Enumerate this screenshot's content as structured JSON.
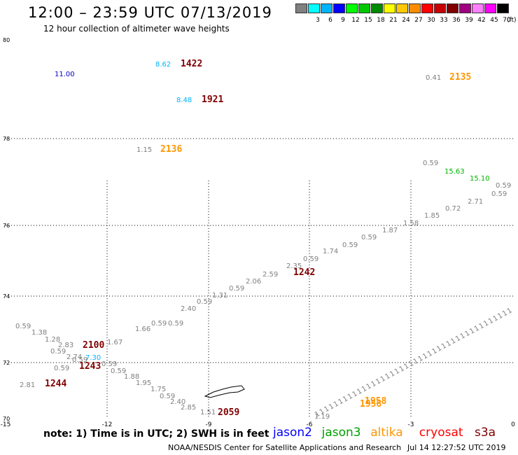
{
  "header": {
    "title": "12:00 – 23:59 UTC 07/13/2019",
    "subtitle": "12 hour collection of altimeter wave heights"
  },
  "legend": {
    "swatches": [
      {
        "color": "#808080",
        "label": ""
      },
      {
        "color": "#00ffff",
        "label": "3"
      },
      {
        "color": "#00b4ff",
        "label": "6"
      },
      {
        "color": "#0000ff",
        "label": "9"
      },
      {
        "color": "#00ff00",
        "label": "12"
      },
      {
        "color": "#00c800",
        "label": "15"
      },
      {
        "color": "#008c00",
        "label": "18"
      },
      {
        "color": "#ffff00",
        "label": "21"
      },
      {
        "color": "#ffc800",
        "label": "24"
      },
      {
        "color": "#ff8c00",
        "label": "27"
      },
      {
        "color": "#ff0000",
        "label": "30"
      },
      {
        "color": "#c80000",
        "label": "33"
      },
      {
        "color": "#800000",
        "label": "36"
      },
      {
        "color": "#a00080",
        "label": "39"
      },
      {
        "color": "#ff80ff",
        "label": "42"
      },
      {
        "color": "#ff00ff",
        "label": "45"
      },
      {
        "color": "#000000",
        "label": "70"
      }
    ],
    "unit": "(ft)"
  },
  "map": {
    "lat_labels": [
      "80",
      "78",
      "76",
      "74",
      "72",
      "70"
    ],
    "lon_labels": [
      "-15",
      "-12",
      "-9",
      "-6",
      "-3",
      "0"
    ],
    "colors": {
      "gray": "#808080",
      "cyan": "#00b4ff",
      "blue": "#0000c8",
      "green": "#00b400",
      "orange": "#ff9600",
      "darkred": "#800000"
    },
    "labels": [
      {
        "t": "11.00",
        "c": "blue"
      },
      {
        "t": "8.62",
        "c": "cyan"
      },
      {
        "t": "1422",
        "c": "darkred",
        "big": true
      },
      {
        "t": "8.48",
        "c": "cyan"
      },
      {
        "t": "1921",
        "c": "darkred",
        "big": true
      },
      {
        "t": "0.41",
        "c": "gray"
      },
      {
        "t": "2135",
        "c": "orange",
        "big": true
      },
      {
        "t": "1.15",
        "c": "gray"
      },
      {
        "t": "2136",
        "c": "orange",
        "big": true
      },
      {
        "t": "0.59",
        "c": "gray"
      },
      {
        "t": "15.63",
        "c": "green"
      },
      {
        "t": "15.10",
        "c": "green"
      },
      {
        "t": "0.59",
        "c": "gray"
      },
      {
        "t": "0.59",
        "c": "gray"
      },
      {
        "t": "2.71",
        "c": "gray"
      },
      {
        "t": "0.72",
        "c": "gray"
      },
      {
        "t": "1.85",
        "c": "gray"
      },
      {
        "t": "1.58",
        "c": "gray"
      },
      {
        "t": "1.87",
        "c": "gray"
      },
      {
        "t": "0.59",
        "c": "gray"
      },
      {
        "t": "0.59",
        "c": "gray"
      },
      {
        "t": "1.74",
        "c": "gray"
      },
      {
        "t": "0.59",
        "c": "gray"
      },
      {
        "t": "2.35",
        "c": "gray"
      },
      {
        "t": "1242",
        "c": "darkred",
        "big": true
      },
      {
        "t": "2.06",
        "c": "gray"
      },
      {
        "t": "2.59",
        "c": "gray"
      },
      {
        "t": "0.59",
        "c": "gray"
      },
      {
        "t": "1.31",
        "c": "gray"
      },
      {
        "t": "0.59",
        "c": "gray"
      },
      {
        "t": "2.40",
        "c": "gray"
      },
      {
        "t": "0.59",
        "c": "gray"
      },
      {
        "t": "0.59",
        "c": "gray"
      },
      {
        "t": "1.66",
        "c": "gray"
      },
      {
        "t": "1.67",
        "c": "gray"
      },
      {
        "t": "0.59",
        "c": "gray"
      },
      {
        "t": "1.38",
        "c": "gray"
      },
      {
        "t": "1.28",
        "c": "gray"
      },
      {
        "t": "2.83",
        "c": "gray"
      },
      {
        "t": "2100",
        "c": "darkred",
        "big": true
      },
      {
        "t": "0.59",
        "c": "gray"
      },
      {
        "t": "2.74",
        "c": "gray"
      },
      {
        "t": "0.59",
        "c": "gray"
      },
      {
        "t": "7.30",
        "c": "cyan"
      },
      {
        "t": "0.59",
        "c": "gray"
      },
      {
        "t": "1243",
        "c": "darkred",
        "big": true
      },
      {
        "t": "0.59",
        "c": "gray"
      },
      {
        "t": "2.81",
        "c": "gray"
      },
      {
        "t": "1244",
        "c": "darkred",
        "big": true
      },
      {
        "t": "0.59",
        "c": "gray"
      },
      {
        "t": "1.88",
        "c": "gray"
      },
      {
        "t": "1.95",
        "c": "gray"
      },
      {
        "t": "1.75",
        "c": "gray"
      },
      {
        "t": "0.59",
        "c": "gray"
      },
      {
        "t": "2.40",
        "c": "gray"
      },
      {
        "t": "2.85",
        "c": "gray"
      },
      {
        "t": "1.51",
        "c": "gray"
      },
      {
        "t": "2059",
        "c": "darkred",
        "big": true
      },
      {
        "t": "1958",
        "c": "orange",
        "big": true
      },
      {
        "t": "1958",
        "c": "orange",
        "big": true
      },
      {
        "t": "1.19",
        "c": "gray"
      }
    ]
  },
  "footer": {
    "note": "note:  1) Time is in UTC;  2) SWH is in feet",
    "satellites": [
      {
        "name": "jason2",
        "color": "#0000ff"
      },
      {
        "name": "jason3",
        "color": "#00a000"
      },
      {
        "name": "altika",
        "color": "#ff9600"
      },
      {
        "name": "cryosat",
        "color": "#ff0000"
      },
      {
        "name": "s3a",
        "color": "#800000"
      }
    ],
    "credit": "NOAA/NESDIS Center for Satellite Applications and Research",
    "timestamp": "Jul 14 12:27:52 UTC 2019"
  }
}
